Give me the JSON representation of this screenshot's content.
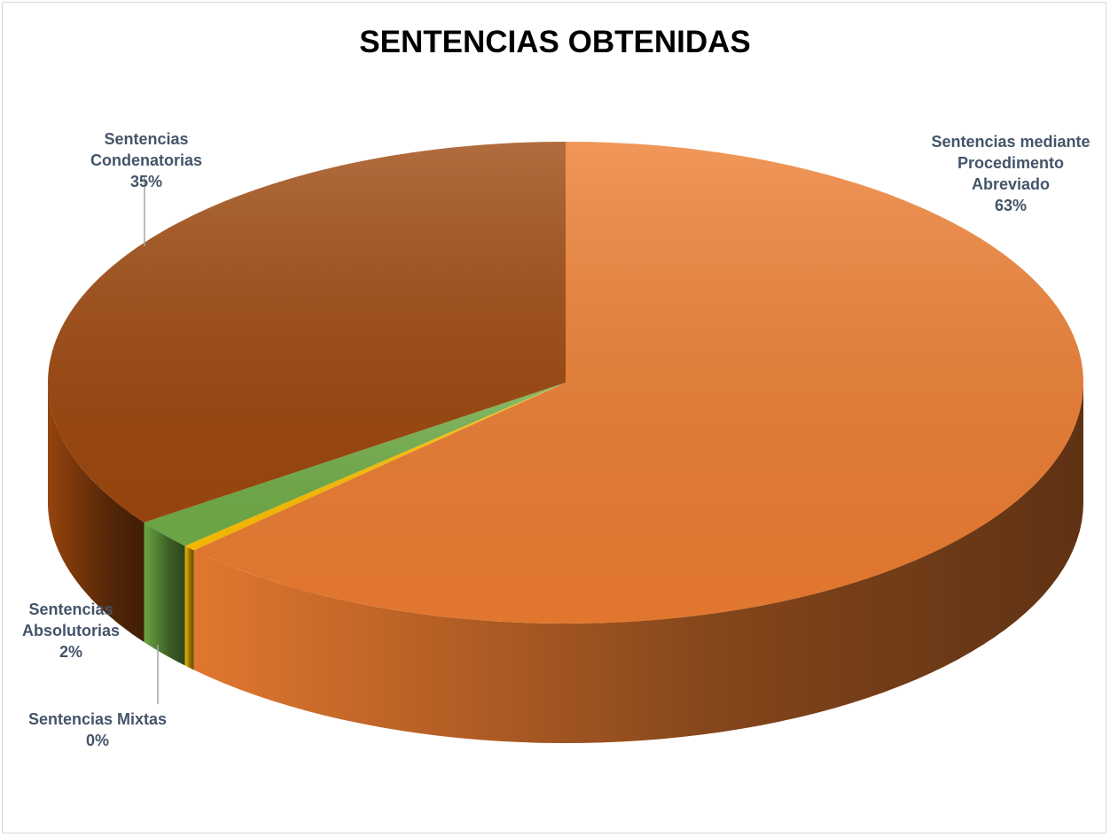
{
  "chart_data": {
    "type": "pie3d",
    "title": "SENTENCIAS OBTENIDAS",
    "categories": [
      "Sentencias mediante Procedimento Abreviado",
      "Sentencias Mixtas",
      "Sentencias Absolutorias",
      "Sentencias Condenatorias"
    ],
    "values": [
      63,
      0.4,
      2,
      35
    ],
    "value_labels": [
      "63%",
      "0%",
      "2%",
      "35%"
    ],
    "colors": [
      "#ed7d31",
      "#ffc000",
      "#70ad47",
      "#9e480e"
    ]
  }
}
